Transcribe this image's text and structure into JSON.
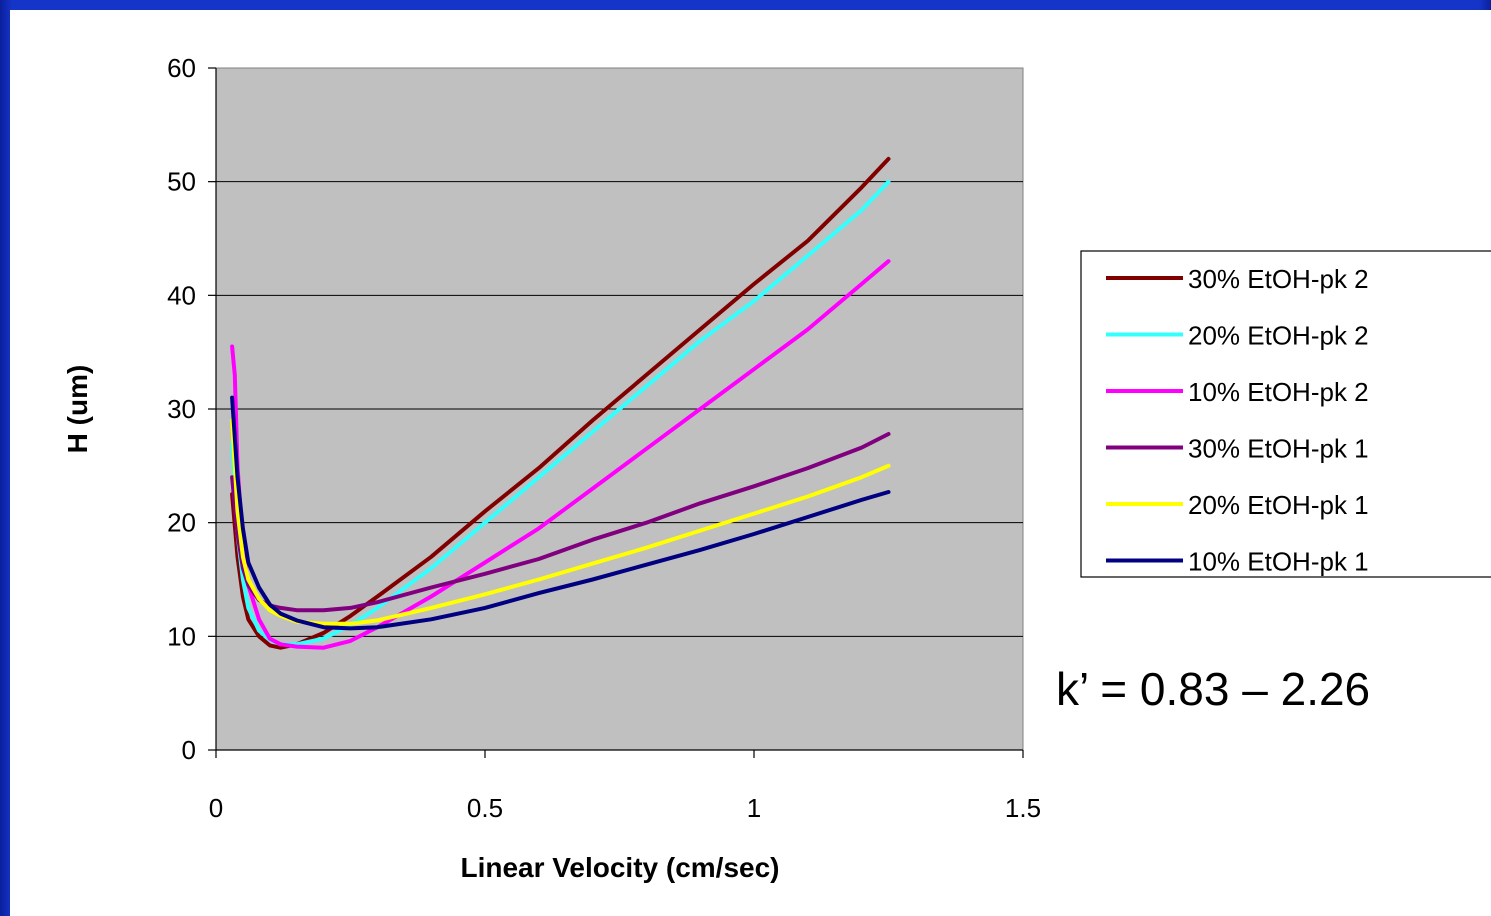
{
  "chart_data": {
    "type": "line",
    "xlabel": "Linear Velocity (cm/sec)",
    "ylabel": "H (um)",
    "xlim": [
      0,
      1.5
    ],
    "ylim": [
      0,
      60
    ],
    "x_ticks": [
      "0",
      "0.5",
      "1",
      "1.5"
    ],
    "y_ticks": [
      "0",
      "10",
      "20",
      "30",
      "40",
      "50",
      "60"
    ],
    "grid": "horizontal",
    "plot_background": "#c0c0c0",
    "legend_position": "right",
    "annotation": "k’ = 0.83 – 2.26",
    "series": [
      {
        "name": "30% EtOH-pk 2",
        "color": "#800000",
        "points": [
          [
            0.03,
            22.5
          ],
          [
            0.04,
            17
          ],
          [
            0.05,
            13.5
          ],
          [
            0.06,
            11.5
          ],
          [
            0.08,
            10
          ],
          [
            0.1,
            9.2
          ],
          [
            0.12,
            9
          ],
          [
            0.15,
            9.3
          ],
          [
            0.2,
            10.3
          ],
          [
            0.25,
            11.8
          ],
          [
            0.3,
            13.5
          ],
          [
            0.4,
            17
          ],
          [
            0.5,
            21
          ],
          [
            0.6,
            24.8
          ],
          [
            0.7,
            29
          ],
          [
            0.8,
            33
          ],
          [
            0.9,
            37
          ],
          [
            1.0,
            41
          ],
          [
            1.1,
            44.8
          ],
          [
            1.2,
            49.5
          ],
          [
            1.25,
            52
          ]
        ]
      },
      {
        "name": "20% EtOH-pk 2",
        "color": "#33ffff",
        "points": [
          [
            0.03,
            27
          ],
          [
            0.04,
            19
          ],
          [
            0.05,
            15
          ],
          [
            0.06,
            12.5
          ],
          [
            0.08,
            10.5
          ],
          [
            0.1,
            9.7
          ],
          [
            0.12,
            9.3
          ],
          [
            0.15,
            9.3
          ],
          [
            0.2,
            9.8
          ],
          [
            0.25,
            11
          ],
          [
            0.3,
            12.5
          ],
          [
            0.4,
            16
          ],
          [
            0.5,
            20
          ],
          [
            0.6,
            24
          ],
          [
            0.7,
            28
          ],
          [
            0.8,
            32
          ],
          [
            0.9,
            36
          ],
          [
            1.0,
            39.5
          ],
          [
            1.1,
            43.5
          ],
          [
            1.2,
            47.5
          ],
          [
            1.25,
            50
          ]
        ]
      },
      {
        "name": "10% EtOH-pk 2",
        "color": "#ff00ff",
        "points": [
          [
            0.03,
            35.5
          ],
          [
            0.035,
            33
          ],
          [
            0.04,
            25
          ],
          [
            0.05,
            18
          ],
          [
            0.06,
            14.5
          ],
          [
            0.08,
            11.5
          ],
          [
            0.1,
            9.8
          ],
          [
            0.12,
            9.3
          ],
          [
            0.15,
            9.1
          ],
          [
            0.2,
            9
          ],
          [
            0.25,
            9.6
          ],
          [
            0.3,
            10.8
          ],
          [
            0.4,
            13.5
          ],
          [
            0.5,
            16.5
          ],
          [
            0.6,
            19.5
          ],
          [
            0.7,
            23
          ],
          [
            0.8,
            26.5
          ],
          [
            0.9,
            30
          ],
          [
            1.0,
            33.5
          ],
          [
            1.1,
            37
          ],
          [
            1.2,
            41
          ],
          [
            1.25,
            43
          ]
        ]
      },
      {
        "name": "30% EtOH-pk 1",
        "color": "#800080",
        "points": [
          [
            0.03,
            24
          ],
          [
            0.04,
            19
          ],
          [
            0.05,
            16
          ],
          [
            0.06,
            14.5
          ],
          [
            0.08,
            13.2
          ],
          [
            0.1,
            12.7
          ],
          [
            0.12,
            12.5
          ],
          [
            0.15,
            12.3
          ],
          [
            0.2,
            12.3
          ],
          [
            0.25,
            12.5
          ],
          [
            0.3,
            13
          ],
          [
            0.4,
            14.3
          ],
          [
            0.5,
            15.5
          ],
          [
            0.6,
            16.8
          ],
          [
            0.7,
            18.5
          ],
          [
            0.8,
            20
          ],
          [
            0.9,
            21.7
          ],
          [
            1.0,
            23.2
          ],
          [
            1.1,
            24.8
          ],
          [
            1.2,
            26.6
          ],
          [
            1.25,
            27.8
          ]
        ]
      },
      {
        "name": "20% EtOH-pk 1",
        "color": "#ffff00",
        "points": [
          [
            0.03,
            29
          ],
          [
            0.04,
            21
          ],
          [
            0.05,
            17
          ],
          [
            0.06,
            15
          ],
          [
            0.08,
            13.3
          ],
          [
            0.1,
            12.3
          ],
          [
            0.12,
            11.8
          ],
          [
            0.15,
            11.3
          ],
          [
            0.2,
            11.1
          ],
          [
            0.25,
            11.1
          ],
          [
            0.3,
            11.4
          ],
          [
            0.4,
            12.5
          ],
          [
            0.5,
            13.7
          ],
          [
            0.6,
            15
          ],
          [
            0.7,
            16.4
          ],
          [
            0.8,
            17.8
          ],
          [
            0.9,
            19.3
          ],
          [
            1.0,
            20.8
          ],
          [
            1.1,
            22.3
          ],
          [
            1.2,
            24
          ],
          [
            1.25,
            25
          ]
        ]
      },
      {
        "name": "10% EtOH-pk 1",
        "color": "#000080",
        "points": [
          [
            0.03,
            31
          ],
          [
            0.04,
            24
          ],
          [
            0.05,
            19.5
          ],
          [
            0.06,
            16.5
          ],
          [
            0.08,
            14.3
          ],
          [
            0.1,
            12.8
          ],
          [
            0.12,
            12
          ],
          [
            0.15,
            11.4
          ],
          [
            0.2,
            10.8
          ],
          [
            0.25,
            10.7
          ],
          [
            0.3,
            10.8
          ],
          [
            0.4,
            11.5
          ],
          [
            0.5,
            12.5
          ],
          [
            0.6,
            13.8
          ],
          [
            0.7,
            15
          ],
          [
            0.8,
            16.3
          ],
          [
            0.9,
            17.6
          ],
          [
            1.0,
            19
          ],
          [
            1.1,
            20.5
          ],
          [
            1.2,
            22
          ],
          [
            1.25,
            22.7
          ]
        ]
      }
    ]
  }
}
